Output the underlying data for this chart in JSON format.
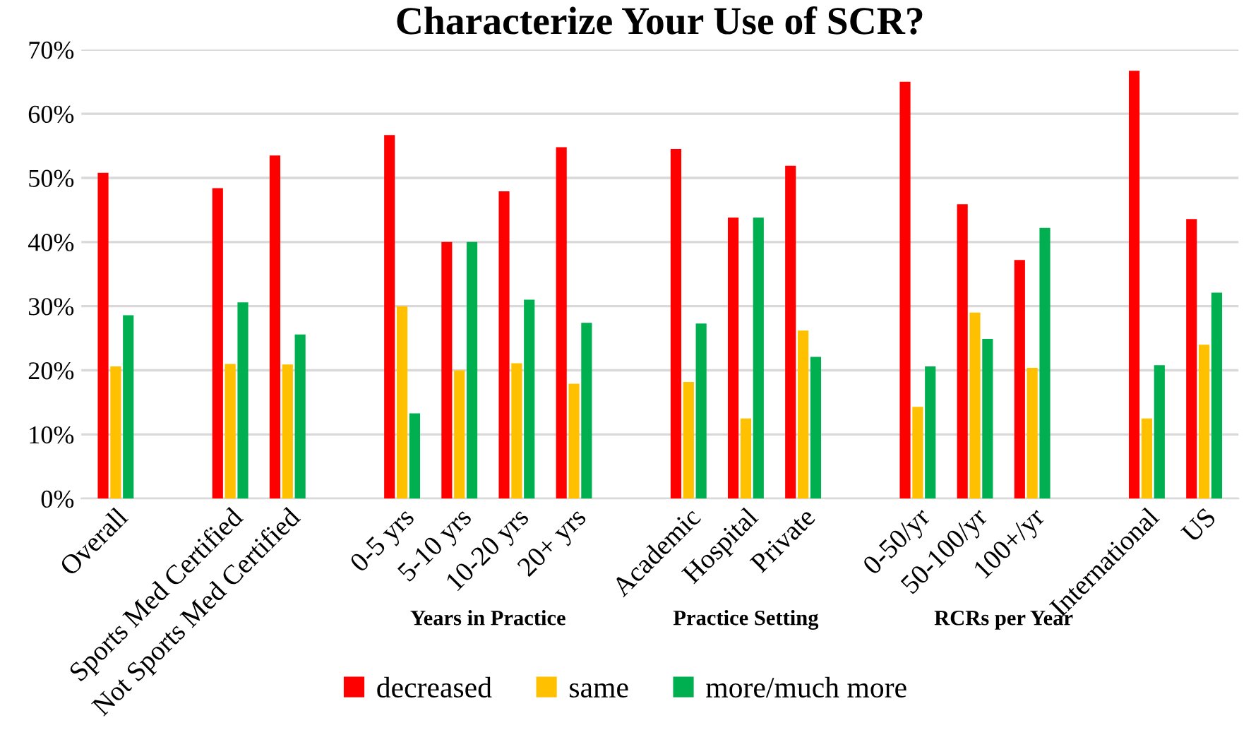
{
  "chart_data": {
    "type": "bar",
    "title": "Characterize Your Use of SCR?",
    "categories": [
      "Overall",
      null,
      "Sports Med Certified",
      "Not Sports Med Certified",
      null,
      "0-5 yrs",
      "5-10 yrs",
      "10-20 yrs",
      "20+ yrs",
      null,
      "Academic",
      "Hospital",
      "Private",
      null,
      "0-50/yr",
      "50-100/yr",
      "100+/yr",
      null,
      "International",
      "US"
    ],
    "series": [
      {
        "name": "decreased",
        "color": "#ff0000",
        "values": [
          50.8,
          null,
          48.4,
          53.5,
          null,
          56.7,
          40.0,
          47.9,
          54.8,
          null,
          54.5,
          43.8,
          51.9,
          null,
          65.0,
          45.9,
          37.2,
          null,
          66.7,
          43.6
        ]
      },
      {
        "name": "same",
        "color": "#ffc000",
        "values": [
          20.6,
          null,
          21.0,
          20.9,
          null,
          30.0,
          20.0,
          21.1,
          17.9,
          null,
          18.2,
          12.5,
          26.2,
          null,
          14.3,
          29.0,
          20.4,
          null,
          12.5,
          24.0
        ]
      },
      {
        "name": "more/much more",
        "color": "#00b050",
        "values": [
          28.6,
          null,
          30.6,
          25.6,
          null,
          13.3,
          40.0,
          31.0,
          27.4,
          null,
          27.3,
          43.8,
          22.1,
          null,
          20.6,
          24.9,
          42.2,
          null,
          20.8,
          32.1
        ]
      }
    ],
    "annotations": [
      "Years in Practice",
      "Practice Setting",
      "RCRs per Year"
    ],
    "ylim": [
      0,
      70
    ],
    "yticks": [
      {
        "value": 0,
        "label": "0%"
      },
      {
        "value": 10,
        "label": "10%"
      },
      {
        "value": 20,
        "label": "20%"
      },
      {
        "value": 30,
        "label": "30%"
      },
      {
        "value": 40,
        "label": "40%"
      },
      {
        "value": 50,
        "label": "50%"
      },
      {
        "value": 60,
        "label": "60%"
      },
      {
        "value": 70,
        "label": "70%"
      }
    ],
    "grid": "y",
    "legend": "bottom"
  }
}
